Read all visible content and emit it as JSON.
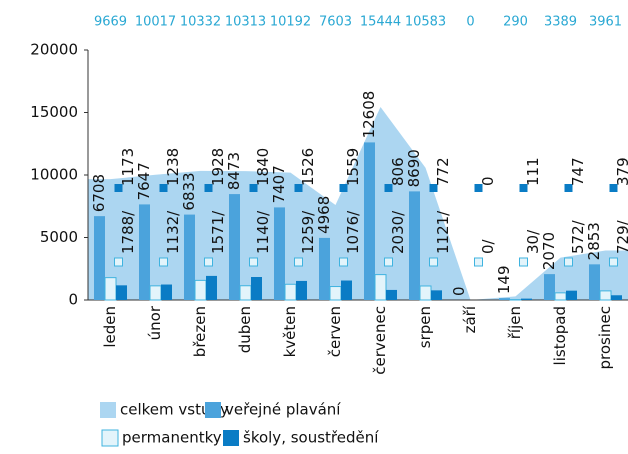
{
  "chart_data": {
    "type": "bar",
    "categories": [
      "leden",
      "únor",
      "březen",
      "duben",
      "květen",
      "červen",
      "červenec",
      "srpen",
      "září",
      "říjen",
      "listopad",
      "prosinec"
    ],
    "series": [
      {
        "name": "celkem vstupy",
        "color": "#acd6f1",
        "kind": "area",
        "values": [
          9669,
          10017,
          10332,
          10313,
          10192,
          7603,
          15444,
          10583,
          0,
          290,
          3389,
          3961
        ]
      },
      {
        "name": "veřejné plavání",
        "color": "#4ba3dc",
        "values": [
          6708,
          7647,
          6833,
          8473,
          7407,
          4968,
          12608,
          8690,
          0,
          149,
          2070,
          2853
        ]
      },
      {
        "name": "permanentky",
        "color": "#e3f4fb",
        "stroke": "#3fb3df",
        "values": [
          1788,
          1132,
          1571,
          1140,
          1259,
          1076,
          2030,
          1121,
          0,
          30,
          572,
          729
        ],
        "value_labels": [
          "1788/",
          "1132/",
          "1571/",
          "1140/",
          "1259/",
          "1076/",
          "2030/",
          "1121/",
          "0/",
          "30/",
          "572/",
          "729/"
        ]
      },
      {
        "name": "školy, soustředění",
        "color": "#0a7cc5",
        "values": [
          1173,
          1238,
          1928,
          1840,
          1526,
          1559,
          806,
          772,
          0,
          111,
          747,
          379
        ]
      }
    ],
    "ylim": [
      0,
      20000
    ],
    "yticks": [
      0,
      5000,
      10000,
      15000,
      20000
    ]
  }
}
